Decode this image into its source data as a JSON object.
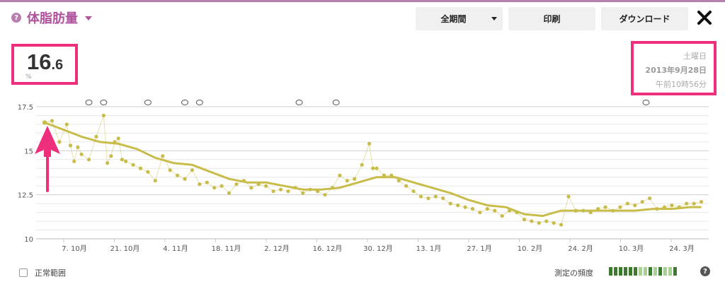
{
  "header": {
    "title": "体脂肪量",
    "help_icon": "question-circle-icon"
  },
  "toolbar": {
    "period_label": "全期間",
    "print_label": "印刷",
    "download_label": "ダウンロード",
    "close_icon": "close-x-icon"
  },
  "reading": {
    "value_int": "16",
    "value_dec": ".6",
    "unit": "%"
  },
  "date_panel": {
    "weekday": "土曜日",
    "date": "2013年9月28日",
    "time": "午前10時56分"
  },
  "footer": {
    "normal_range_label": "正常範囲",
    "frequency_label": "測定の頻度",
    "frequency_level": 0.8
  },
  "colors": {
    "accent": "#b0539f",
    "highlight": "#ee2f7d",
    "series": "#c8bc4a",
    "freq_dark": "#3d7a2d",
    "freq_light": "#a9cf95"
  },
  "chart_data": {
    "type": "line",
    "ylim": [
      10,
      17.5
    ],
    "y_ticks": [
      "17.5",
      "15",
      "12.5",
      "10"
    ],
    "x_ticks": [
      "7. 10月",
      "21. 10月",
      "4. 11月",
      "18. 11月",
      "2. 12月",
      "16. 12月",
      "30. 12月",
      "13. 1月",
      "27. 1月",
      "10. 2月",
      "24. 2月",
      "10. 3月",
      "24. 3月"
    ],
    "series": [
      {
        "kind": "trend",
        "x": [
          0,
          5,
          10,
          15,
          20,
          25,
          30,
          35,
          40,
          45,
          50,
          55,
          60,
          65,
          70,
          75,
          80,
          85,
          90,
          95,
          100,
          105,
          110,
          115,
          120,
          125,
          130,
          135,
          140,
          145,
          150,
          155,
          160,
          165,
          170,
          175,
          178
        ],
        "y": [
          16.6,
          16.2,
          15.8,
          15.5,
          15.4,
          15.1,
          14.6,
          14.3,
          14.2,
          13.8,
          13.4,
          13.2,
          13.2,
          13.0,
          12.8,
          12.8,
          12.9,
          13.2,
          13.5,
          13.5,
          13.2,
          12.9,
          12.6,
          12.2,
          11.9,
          11.8,
          11.4,
          11.3,
          11.6,
          11.6,
          11.6,
          11.6,
          11.6,
          11.7,
          11.7,
          11.8,
          11.8
        ]
      },
      {
        "kind": "readings",
        "x": [
          0,
          2,
          4,
          6,
          7,
          8,
          9,
          10,
          12,
          14,
          16,
          17,
          18,
          19,
          20,
          21,
          22,
          24,
          26,
          28,
          30,
          32,
          34,
          36,
          38,
          40,
          42,
          44,
          46,
          48,
          50,
          52,
          54,
          56,
          58,
          60,
          62,
          64,
          66,
          68,
          70,
          72,
          74,
          76,
          78,
          80,
          82,
          84,
          86,
          88,
          89,
          90,
          92,
          94,
          96,
          98,
          100,
          102,
          104,
          106,
          108,
          110,
          112,
          114,
          116,
          118,
          120,
          122,
          124,
          126,
          128,
          130,
          132,
          134,
          136,
          138,
          140,
          142,
          144,
          146,
          148,
          150,
          152,
          154,
          156,
          158,
          160,
          162,
          164,
          166,
          168,
          170,
          172,
          174,
          176,
          178
        ],
        "y": [
          16.6,
          16.7,
          15.5,
          16.5,
          15.3,
          14.4,
          15.2,
          14.8,
          14.5,
          15.8,
          17.0,
          14.3,
          14.7,
          15.5,
          15.7,
          14.5,
          14.4,
          14.2,
          14.0,
          13.8,
          13.3,
          14.7,
          13.9,
          13.6,
          13.4,
          13.9,
          13.1,
          13.2,
          12.9,
          13.0,
          12.6,
          13.1,
          13.3,
          12.9,
          13.1,
          13.0,
          12.7,
          12.8,
          12.7,
          12.9,
          12.6,
          12.8,
          12.7,
          12.5,
          12.9,
          13.6,
          13.3,
          13.4,
          14.2,
          15.4,
          14.0,
          14.0,
          13.6,
          13.6,
          13.3,
          13.0,
          12.7,
          12.4,
          12.3,
          12.4,
          12.3,
          12.0,
          11.9,
          11.8,
          11.7,
          11.5,
          11.7,
          11.6,
          11.3,
          11.6,
          11.5,
          11.1,
          11.0,
          10.9,
          11.0,
          10.9,
          10.8,
          12.4,
          11.6,
          11.6,
          11.5,
          11.7,
          11.8,
          11.6,
          11.8,
          12.0,
          11.9,
          12.1,
          12.3,
          11.7,
          11.8,
          11.9,
          11.8,
          12.0,
          12.0,
          12.1
        ]
      }
    ],
    "annotation_markers": [
      12,
      16,
      28,
      38,
      42,
      69,
      79,
      163
    ]
  }
}
